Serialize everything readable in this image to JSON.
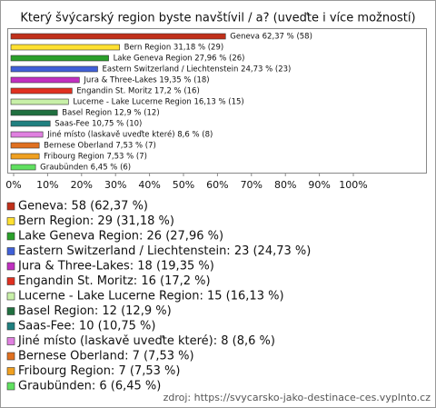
{
  "chart_data": {
    "type": "bar",
    "orientation": "horizontal",
    "title": "Který švýcarský region byste navštívil / a? (uveďte i více možností)",
    "values": [
      62.37,
      31.18,
      27.96,
      24.73,
      19.35,
      17.2,
      16.13,
      12.9,
      10.75,
      8.6,
      7.53,
      7.53,
      6.45
    ],
    "value_labels": [
      "Geneva 62,37 % (58)",
      "Bern Region 31,18 % (29)",
      "Lake Geneva Region 27,96 % (26)",
      "Eastern Switzerland / Liechtenstein 24,73 % (23)",
      "Jura & Three-Lakes 19,35 % (18)",
      "Engandin St. Moritz 17,2 % (16)",
      "Lucerne - Lake Lucerne Region 16,13 % (15)",
      "Basel Region 12,9 % (12)",
      "Saas-Fee 10,75 % (10)",
      "Jiné místo (laskavě uveďte které) 8,6 % (8)",
      "Bernese Oberland 7,53 % (7)",
      "Fribourg Region 7,53 % (7)",
      "Graubünden 6,45 % (6)"
    ],
    "legend_labels": [
      "Geneva: 58 (62,37 %)",
      "Bern Region: 29 (31,18 %)",
      "Lake Geneva Region: 26 (27,96 %)",
      "Eastern Switzerland / Liechtenstein: 23 (24,73 %)",
      "Jura & Three-Lakes: 18 (19,35 %)",
      "Engandin St. Moritz: 16 (17,2 %)",
      "Lucerne - Lake Lucerne Region: 15 (16,13 %)",
      "Basel Region: 12 (12,9 %)",
      "Saas-Fee: 10 (10,75 %)",
      "Jiné místo (laskavě uveďte které): 8 (8,6 %)",
      "Bernese Oberland: 7 (7,53 %)",
      "Fribourg Region: 7 (7,53 %)",
      "Graubünden: 6 (6,45 %)"
    ],
    "colors": [
      "#c0301a",
      "#ffe030",
      "#2aa02a",
      "#4060d8",
      "#c030c0",
      "#e03020",
      "#c8f0a8",
      "#207040",
      "#208080",
      "#e080e0",
      "#e07020",
      "#f0a020",
      "#60e060"
    ],
    "xlim": [
      0,
      100
    ],
    "xticks": [
      {
        "value": 0,
        "label": "0%"
      },
      {
        "value": 10,
        "label": "10%"
      },
      {
        "value": 20,
        "label": "20%"
      },
      {
        "value": 30,
        "label": "30%"
      },
      {
        "value": 40,
        "label": "40%"
      },
      {
        "value": 50,
        "label": "50%"
      },
      {
        "value": 60,
        "label": "60%"
      },
      {
        "value": 70,
        "label": "70%"
      },
      {
        "value": 80,
        "label": "80%"
      },
      {
        "value": 90,
        "label": "90%"
      },
      {
        "value": 100,
        "label": "100%"
      }
    ],
    "grid": false,
    "source": "zdroj: https://svycarsko-jako-destinace-ces.vyplnto.cz"
  }
}
